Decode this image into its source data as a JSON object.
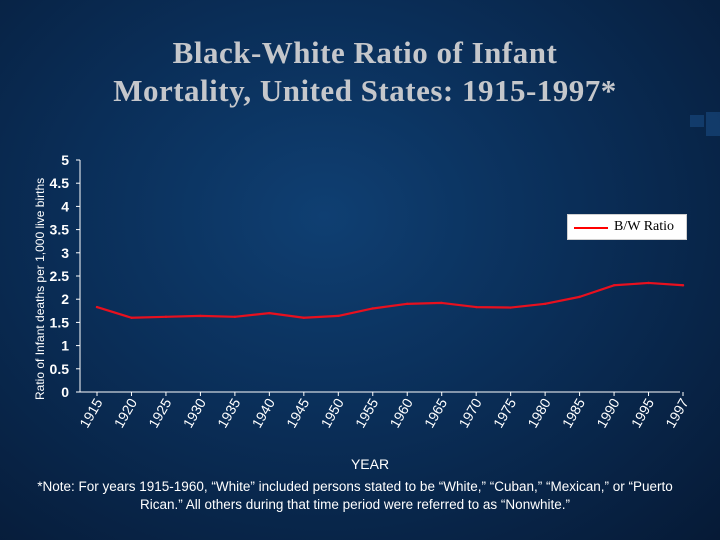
{
  "title_lines": [
    "Black-White Ratio of Infant",
    "Mortality, United States: 1915-1997*"
  ],
  "note": "*Note:  For years 1915-1960, “White” included persons stated to be “White,” “Cuban,” “Mexican,” or “Puerto Rican.” All others during that time period were referred to as “Nonwhite.”",
  "colors": {
    "background": "#0a2e58",
    "line": "#e8101e",
    "text": "#ffffff",
    "title": "#c5c7cb"
  },
  "chart_data": {
    "type": "line",
    "title": "Black-White Ratio of Infant Mortality, United States: 1915-1997*",
    "xlabel": "YEAR",
    "ylabel": "Ratio of Infant deaths per 1,000 live births",
    "categories": [
      "1915",
      "1920",
      "1925",
      "1930",
      "1935",
      "1940",
      "1945",
      "1950",
      "1955",
      "1960",
      "1965",
      "1970",
      "1975",
      "1980",
      "1985",
      "1990",
      "1995",
      "1997"
    ],
    "ylim": [
      0,
      5
    ],
    "yticks": [
      "0",
      "0.5",
      "1",
      "1.5",
      "2",
      "2.5",
      "3",
      "3.5",
      "4",
      "4.5",
      "5"
    ],
    "grid": false,
    "legend_position": "right",
    "series": [
      {
        "name": "B/W Ratio",
        "values": [
          1.83,
          1.6,
          1.62,
          1.64,
          1.62,
          1.7,
          1.6,
          1.64,
          1.8,
          1.9,
          1.92,
          1.83,
          1.82,
          1.9,
          2.05,
          2.3,
          2.35,
          2.3
        ]
      }
    ]
  }
}
